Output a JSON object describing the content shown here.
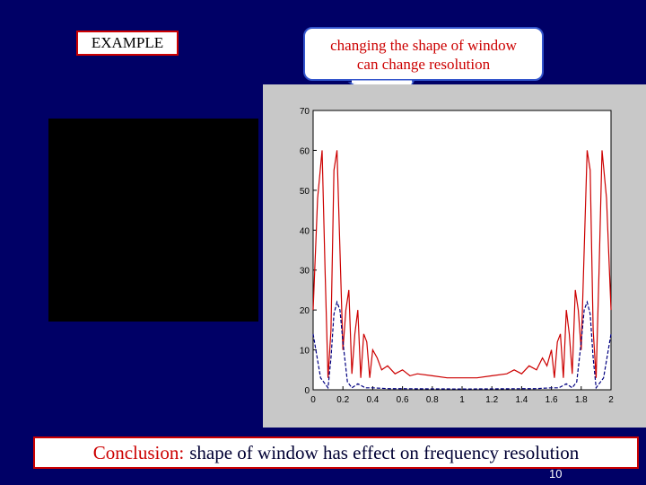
{
  "example_label": "EXAMPLE",
  "callout": {
    "line1": "changing the shape of window",
    "line2": "can change resolution"
  },
  "chart_data": {
    "type": "line",
    "title": "",
    "xlabel": "",
    "ylabel": "",
    "xlim": [
      0,
      2
    ],
    "ylim": [
      0,
      70
    ],
    "x_ticks": [
      "0",
      "0.2",
      "0.4",
      "0.6",
      "0.8",
      "1",
      "1.2",
      "1.4",
      "1.6",
      "1.8",
      "2"
    ],
    "y_ticks": [
      "0",
      "10",
      "20",
      "30",
      "40",
      "50",
      "60",
      "70"
    ],
    "series": [
      {
        "style": "solid",
        "color": "#cc0000",
        "x": [
          0.0,
          0.03,
          0.06,
          0.08,
          0.1,
          0.12,
          0.14,
          0.16,
          0.18,
          0.2,
          0.22,
          0.24,
          0.26,
          0.28,
          0.3,
          0.32,
          0.34,
          0.36,
          0.38,
          0.4,
          0.43,
          0.46,
          0.5,
          0.55,
          0.6,
          0.65,
          0.7,
          0.8,
          0.9,
          1.0,
          1.1,
          1.2,
          1.3,
          1.35,
          1.4,
          1.45,
          1.5,
          1.54,
          1.57,
          1.6,
          1.62,
          1.64,
          1.66,
          1.68,
          1.7,
          1.72,
          1.74,
          1.76,
          1.78,
          1.8,
          1.82,
          1.84,
          1.86,
          1.88,
          1.9,
          1.92,
          1.94,
          1.97,
          2.0
        ],
        "y": [
          20,
          48,
          60,
          30,
          3,
          15,
          55,
          60,
          35,
          10,
          20,
          25,
          4,
          14,
          20,
          3,
          14,
          12,
          3,
          10,
          8,
          5,
          6,
          4,
          5,
          3.5,
          4,
          3.5,
          3,
          3,
          3,
          3.5,
          4,
          5,
          4,
          6,
          5,
          8,
          6,
          10,
          3,
          12,
          14,
          3,
          20,
          14,
          4,
          25,
          20,
          10,
          35,
          60,
          55,
          15,
          3,
          30,
          60,
          48,
          20
        ]
      },
      {
        "style": "dashed",
        "color": "#000080",
        "x": [
          0.0,
          0.05,
          0.1,
          0.12,
          0.14,
          0.16,
          0.18,
          0.2,
          0.23,
          0.26,
          0.3,
          0.35,
          0.4,
          0.5,
          1.0,
          1.5,
          1.6,
          1.65,
          1.7,
          1.74,
          1.77,
          1.8,
          1.82,
          1.84,
          1.86,
          1.88,
          1.9,
          1.95,
          2.0
        ],
        "y": [
          14,
          3,
          0.5,
          8,
          19,
          22,
          20,
          12,
          2,
          0.5,
          1.5,
          0.5,
          0.5,
          0.3,
          0.2,
          0.3,
          0.5,
          0.5,
          1.5,
          0.5,
          2,
          12,
          20,
          22,
          19,
          8,
          0.5,
          3,
          14
        ]
      }
    ]
  },
  "conclusion": {
    "label": "Conclusion:",
    "text": "shape of window has effect  on frequency resolution"
  },
  "page_number": "10"
}
